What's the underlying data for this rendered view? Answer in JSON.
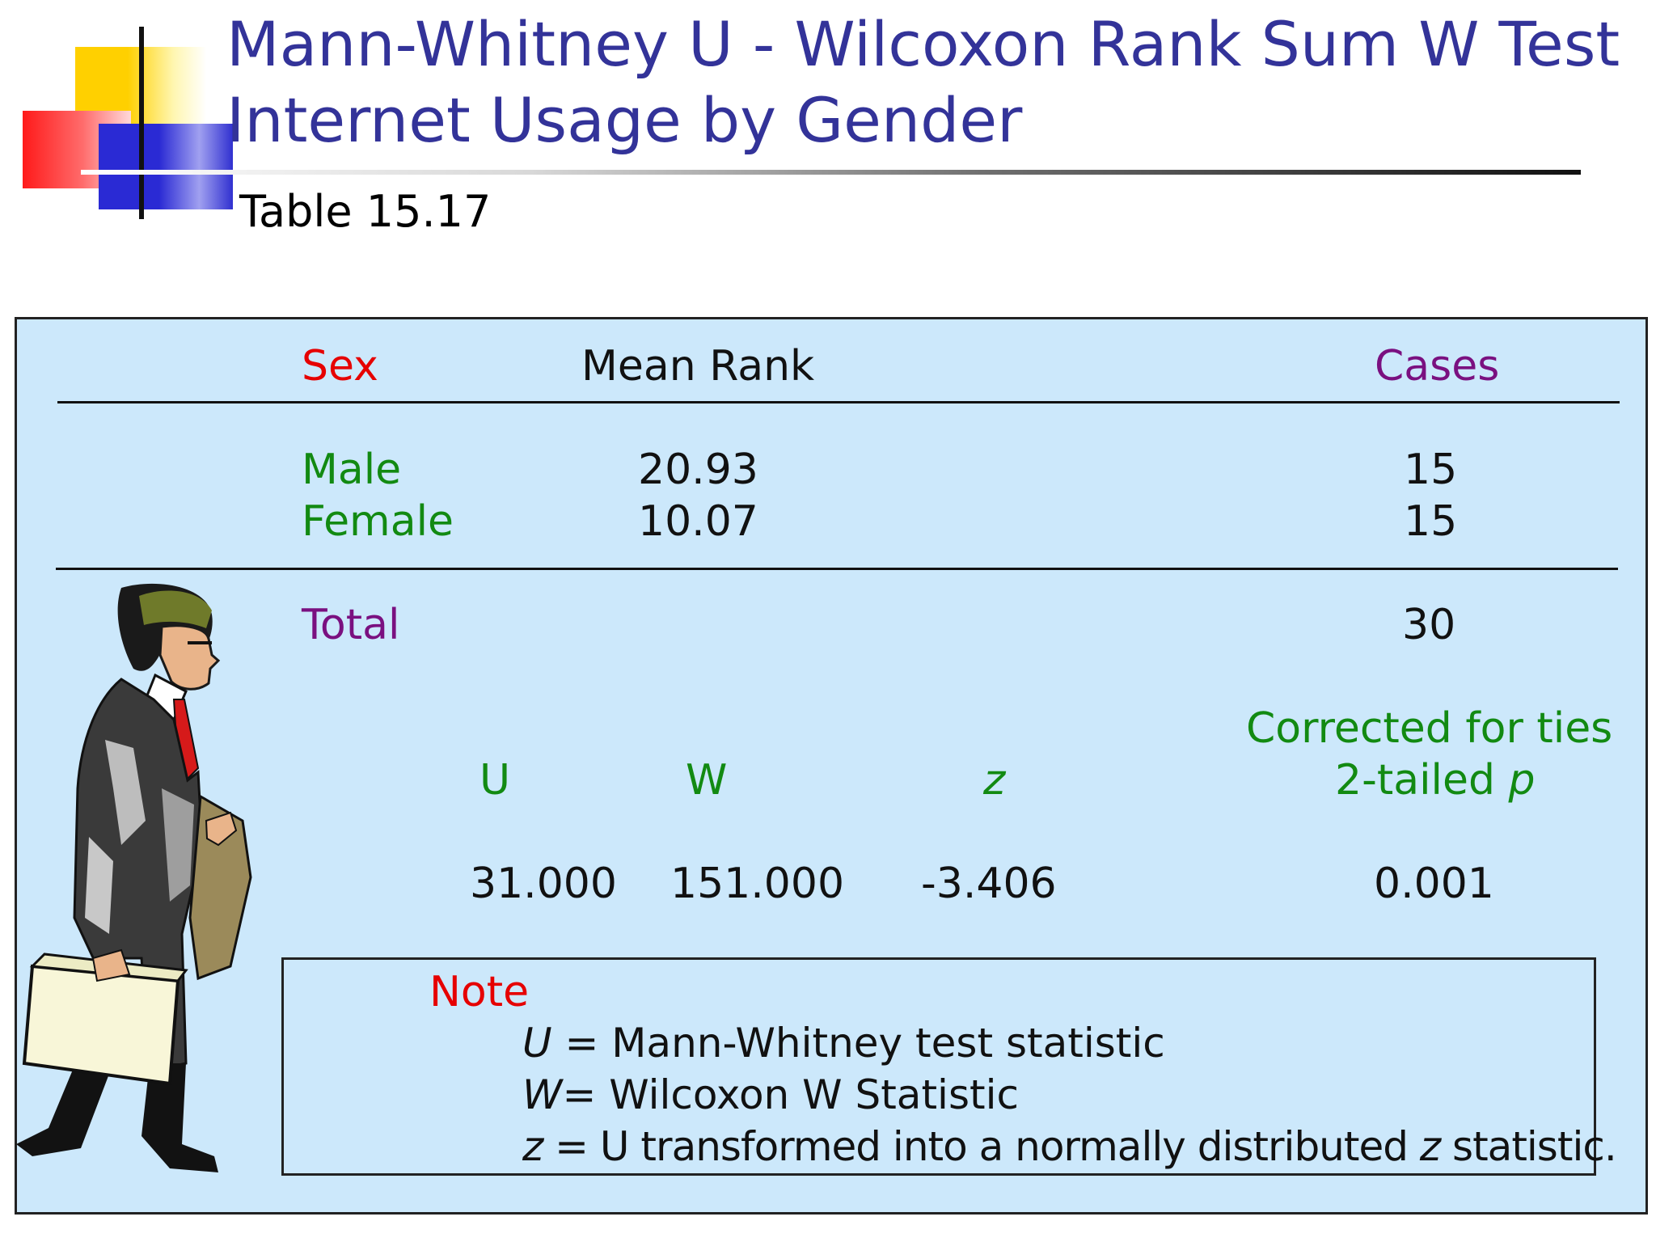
{
  "title": {
    "line1": "Mann-Whitney U - Wilcoxon Rank Sum W Test",
    "line2": "Internet Usage by Gender"
  },
  "subtitle": "Table 15.17",
  "table": {
    "headers": {
      "sex": "Sex",
      "mean_rank": "Mean Rank",
      "cases": "Cases"
    },
    "rows": [
      {
        "sex": "Male",
        "mean_rank": "20.93",
        "cases": "15"
      },
      {
        "sex": "Female",
        "mean_rank": "10.07",
        "cases": "15"
      }
    ],
    "total": {
      "label": "Total",
      "cases": "30"
    }
  },
  "stats": {
    "headers": {
      "u": "U",
      "w": "W",
      "z": "z",
      "p_line1": "Corrected for ties",
      "p_line2_prefix": "2-tailed ",
      "p_line2_var": "p"
    },
    "values": {
      "u": "31.000",
      "w": "151.000",
      "z": "-3.406",
      "p": "0.001"
    }
  },
  "note": {
    "heading": "Note",
    "lines": [
      {
        "var": "U",
        "text": " = Mann-Whitney test statistic"
      },
      {
        "var": "W",
        "text": "= Wilcoxon W Statistic"
      },
      {
        "var": "z",
        "text": " = U transformed into a normally distributed ",
        "var2": "z",
        "text2": " statistic."
      }
    ]
  },
  "colors": {
    "title": "#333399",
    "panel": "#cce8fb",
    "red": "#e60000",
    "green": "#128a12",
    "purple": "#7a1080"
  },
  "icons": {
    "logo": "colored-squares-logo",
    "figure": "businessman-with-briefcase-illustration"
  }
}
